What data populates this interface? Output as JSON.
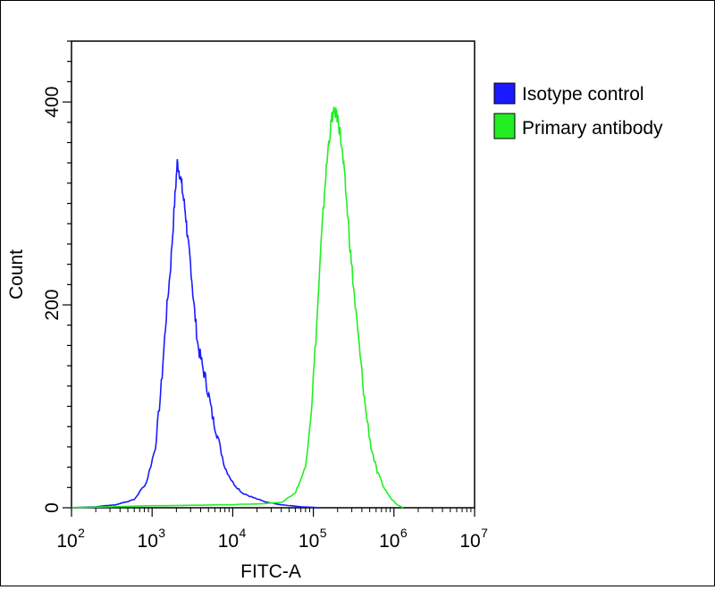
{
  "chart_data": {
    "type": "line",
    "title": "",
    "xlabel": "FITC-A",
    "ylabel": "Count",
    "x_scale": "log",
    "xlim": [
      100,
      10000000
    ],
    "ylim": [
      0,
      460
    ],
    "x_ticks": [
      {
        "base": "10",
        "exp": "2"
      },
      {
        "base": "10",
        "exp": "3"
      },
      {
        "base": "10",
        "exp": "4"
      },
      {
        "base": "10",
        "exp": "5"
      },
      {
        "base": "10",
        "exp": "6"
      },
      {
        "base": "10",
        "exp": "7"
      }
    ],
    "y_ticks": [
      "0",
      "200",
      "400"
    ],
    "y_tick_values": [
      0,
      200,
      400
    ],
    "legend_position": "right",
    "series": [
      {
        "name": "Isotype control",
        "color": "#1a1aff",
        "x": [
          100,
          200,
          350,
          600,
          850,
          1100,
          1300,
          1500,
          1700,
          1900,
          2050,
          2200,
          2400,
          2600,
          2800,
          3000,
          3300,
          3700,
          4200,
          4800,
          5600,
          6500,
          8000,
          10000,
          13000,
          18000,
          25000,
          40000,
          70000,
          120000
        ],
        "y": [
          0,
          1,
          3,
          8,
          25,
          60,
          120,
          190,
          240,
          300,
          340,
          330,
          310,
          290,
          260,
          240,
          200,
          160,
          140,
          120,
          90,
          70,
          40,
          25,
          15,
          10,
          6,
          3,
          1,
          0
        ]
      },
      {
        "name": "Primary antibody",
        "color": "#22ee22",
        "x": [
          100,
          1000,
          10000,
          40000,
          60000,
          80000,
          95000,
          110000,
          125000,
          140000,
          155000,
          170000,
          185000,
          200000,
          215000,
          235000,
          260000,
          290000,
          330000,
          380000,
          440000,
          520000,
          620000,
          750000,
          900000,
          1100000,
          1300000
        ],
        "y": [
          0,
          2,
          3,
          5,
          15,
          40,
          100,
          180,
          260,
          320,
          360,
          385,
          390,
          385,
          370,
          340,
          300,
          250,
          200,
          150,
          100,
          60,
          35,
          20,
          10,
          3,
          0
        ]
      }
    ]
  }
}
